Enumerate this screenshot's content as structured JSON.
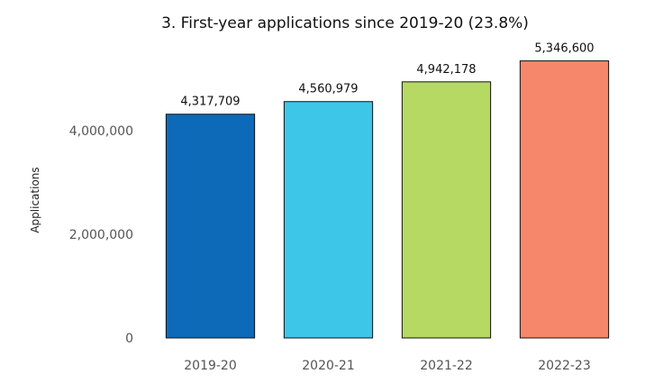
{
  "chart_data": {
    "type": "bar",
    "title": "3. First-year applications since 2019-20 (23.8%)",
    "xlabel": "",
    "ylabel": "Applications",
    "categories": [
      "2019-20",
      "2020-21",
      "2021-22",
      "2022-23"
    ],
    "values": [
      4317709,
      4560979,
      4942178,
      5346600
    ],
    "value_labels": [
      "4,317,709",
      "4,560,979",
      "4,942,178",
      "5,346,600"
    ],
    "colors": [
      "#0d6ab8",
      "#3ec6e8",
      "#b6d964",
      "#f7876a"
    ],
    "ylim": [
      0,
      6000000
    ],
    "yticks": [
      0,
      2000000,
      4000000
    ],
    "ytick_labels": [
      "0",
      "2,000,000",
      "4,000,000"
    ],
    "grid": false,
    "legend": "none"
  }
}
